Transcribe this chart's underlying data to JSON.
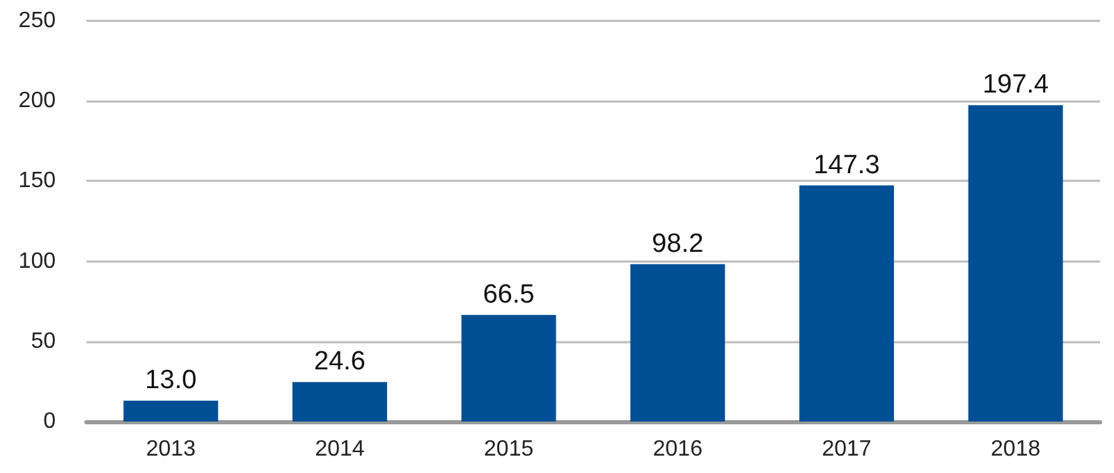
{
  "chart_data": {
    "type": "bar",
    "categories": [
      "2013",
      "2014",
      "2015",
      "2016",
      "2017",
      "2018"
    ],
    "values": [
      13.0,
      24.6,
      66.5,
      98.2,
      147.3,
      197.4
    ],
    "value_labels": [
      "13.0",
      "24.6",
      "66.5",
      "98.2",
      "147.3",
      "197.4"
    ],
    "color": "#004f95",
    "ylim": [
      0,
      250
    ],
    "yticks": [
      0,
      50,
      100,
      150,
      200,
      250
    ],
    "grid": "y"
  }
}
